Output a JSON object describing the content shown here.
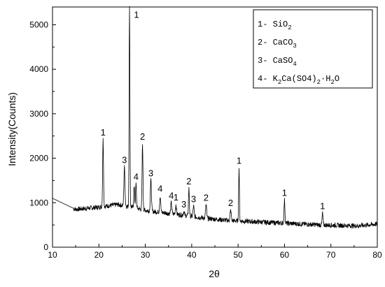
{
  "chart_data": {
    "type": "line",
    "xlabel": "2θ",
    "ylabel": "Intensity(Counts)",
    "xlim": [
      10,
      80
    ],
    "ylim": [
      0,
      5400
    ],
    "xticks": [
      "10",
      "20",
      "30",
      "40",
      "50",
      "60",
      "70",
      "80"
    ],
    "yticks": [
      "0",
      "1000",
      "2000",
      "3000",
      "4000",
      "5000"
    ],
    "legend": {
      "placement": "top-right",
      "entries": [
        {
          "prefix": "1- ",
          "formula": [
            [
              "SiO",
              ""
            ],
            [
              "2",
              "sub"
            ]
          ]
        },
        {
          "prefix": "2- ",
          "formula": [
            [
              "CaCO",
              ""
            ],
            [
              "3",
              "sub"
            ]
          ]
        },
        {
          "prefix": "3- ",
          "formula": [
            [
              "CaSO",
              ""
            ],
            [
              "4",
              "sub"
            ]
          ]
        },
        {
          "prefix": "4- ",
          "formula": [
            [
              "K",
              ""
            ],
            [
              "2",
              "sub"
            ],
            [
              "Ca(SO4)",
              ""
            ],
            [
              "2",
              "sub"
            ],
            [
              "·H",
              ""
            ],
            [
              "2",
              "sub"
            ],
            [
              "O",
              ""
            ]
          ]
        }
      ]
    },
    "baseline": [
      [
        10,
        1100
      ],
      [
        12,
        1000
      ],
      [
        14,
        900
      ],
      [
        15,
        850
      ],
      [
        18,
        880
      ],
      [
        20,
        900
      ],
      [
        22,
        930
      ],
      [
        24,
        960
      ],
      [
        26,
        920
      ],
      [
        28,
        880
      ],
      [
        30,
        830
      ],
      [
        32,
        800
      ],
      [
        35,
        760
      ],
      [
        38,
        720
      ],
      [
        40,
        690
      ],
      [
        44,
        640
      ],
      [
        48,
        600
      ],
      [
        52,
        580
      ],
      [
        56,
        560
      ],
      [
        60,
        540
      ],
      [
        64,
        520
      ],
      [
        68,
        500
      ],
      [
        72,
        490
      ],
      [
        76,
        480
      ],
      [
        80,
        520
      ]
    ],
    "peaks": [
      {
        "x": 20.9,
        "y": 2420,
        "width": 0.25,
        "label": "1"
      },
      {
        "x": 25.5,
        "y": 1800,
        "width": 0.3,
        "label": "3"
      },
      {
        "x": 26.6,
        "y": 5380,
        "width": 0.22,
        "label": "1"
      },
      {
        "x": 27.6,
        "y": 1350,
        "width": 0.25,
        "label": ""
      },
      {
        "x": 28.0,
        "y": 1420,
        "width": 0.25,
        "label": "4"
      },
      {
        "x": 29.4,
        "y": 2320,
        "width": 0.25,
        "label": "2"
      },
      {
        "x": 31.2,
        "y": 1500,
        "width": 0.3,
        "label": "3"
      },
      {
        "x": 33.2,
        "y": 1150,
        "width": 0.3,
        "label": "4"
      },
      {
        "x": 35.6,
        "y": 1000,
        "width": 0.3,
        "label": "4"
      },
      {
        "x": 36.6,
        "y": 960,
        "width": 0.3,
        "label": "1"
      },
      {
        "x": 38.3,
        "y": 800,
        "width": 0.3,
        "label": "3"
      },
      {
        "x": 39.4,
        "y": 1320,
        "width": 0.25,
        "label": "2"
      },
      {
        "x": 40.4,
        "y": 920,
        "width": 0.3,
        "label": "3"
      },
      {
        "x": 43.1,
        "y": 950,
        "width": 0.3,
        "label": "2"
      },
      {
        "x": 48.4,
        "y": 830,
        "width": 0.3,
        "label": "2"
      },
      {
        "x": 50.2,
        "y": 1780,
        "width": 0.22,
        "label": "1"
      },
      {
        "x": 60.0,
        "y": 1060,
        "width": 0.25,
        "label": "1"
      },
      {
        "x": 68.2,
        "y": 760,
        "width": 0.25,
        "label": "1"
      }
    ]
  }
}
